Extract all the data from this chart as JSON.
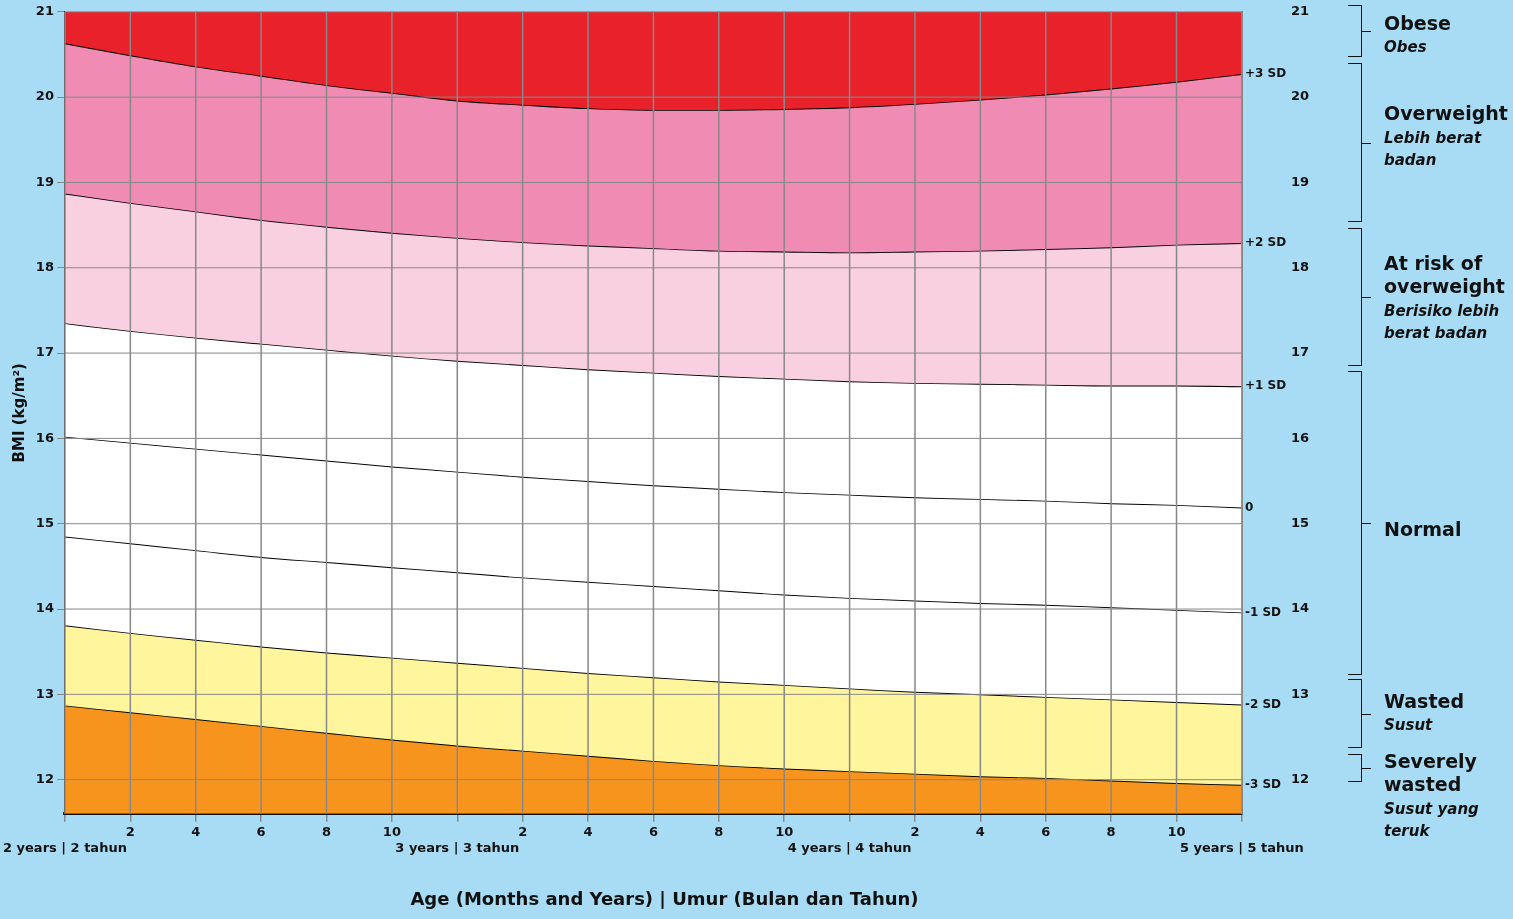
{
  "chart_data": {
    "type": "area",
    "xlabel": "Age (Months and Years) | Umur (Bulan dan Tahun)",
    "ylabel": "BMI (kg/m²)",
    "categories": [
      "2 years | 2 tahun",
      "2",
      "4",
      "6",
      "8",
      "10",
      "3 years | 3 tahun",
      "2",
      "4",
      "6",
      "8",
      "10",
      "4 years | 4 tahun",
      "2",
      "4",
      "6",
      "8",
      "10",
      "5 years | 5 tahun"
    ],
    "ylim": [
      11.6,
      21
    ],
    "yticks": [
      12,
      13,
      14,
      15,
      16,
      17,
      18,
      19,
      20,
      21
    ],
    "y2lim": [
      11.6,
      21
    ],
    "y2ticks": [
      12,
      13,
      14,
      15,
      16,
      17,
      18,
      19,
      20,
      21
    ],
    "grid": true,
    "series": [
      {
        "name": "-3 SD",
        "color": "#f7941d",
        "values": [
          12.87,
          12.79,
          12.71,
          12.63,
          12.55,
          12.47,
          12.4,
          12.34,
          12.28,
          12.22,
          12.17,
          12.13,
          12.1,
          12.07,
          12.04,
          12.02,
          11.99,
          11.96,
          11.94
        ]
      },
      {
        "name": "-2 SD",
        "color": "#fff59d",
        "values": [
          13.81,
          13.72,
          13.64,
          13.56,
          13.49,
          13.43,
          13.37,
          13.31,
          13.25,
          13.2,
          13.15,
          13.11,
          13.07,
          13.03,
          13.0,
          12.97,
          12.94,
          12.91,
          12.88
        ]
      },
      {
        "name": "-1 SD",
        "color": "#ffffff",
        "values": [
          14.85,
          14.77,
          14.69,
          14.61,
          14.55,
          14.49,
          14.43,
          14.37,
          14.32,
          14.27,
          14.22,
          14.17,
          14.13,
          14.1,
          14.07,
          14.05,
          14.02,
          13.99,
          13.96
        ]
      },
      {
        "name": "0",
        "color": "#ffffff",
        "values": [
          16.02,
          15.95,
          15.88,
          15.81,
          15.74,
          15.67,
          15.61,
          15.55,
          15.5,
          15.45,
          15.41,
          15.37,
          15.34,
          15.31,
          15.29,
          15.27,
          15.24,
          15.22,
          15.19
        ]
      },
      {
        "name": "+1 SD",
        "color": "#ffffff",
        "values": [
          17.35,
          17.26,
          17.18,
          17.11,
          17.04,
          16.97,
          16.91,
          16.86,
          16.81,
          16.77,
          16.73,
          16.7,
          16.67,
          16.65,
          16.64,
          16.63,
          16.62,
          16.62,
          16.61
        ]
      },
      {
        "name": "+2 SD",
        "color": "#f9d0e0",
        "values": [
          18.87,
          18.76,
          18.66,
          18.56,
          18.48,
          18.41,
          18.35,
          18.3,
          18.26,
          18.23,
          18.2,
          18.19,
          18.18,
          18.19,
          18.2,
          18.22,
          18.24,
          18.27,
          18.29
        ]
      },
      {
        "name": "+3 SD",
        "color": "#f08cb4",
        "values": [
          20.63,
          20.49,
          20.36,
          20.25,
          20.14,
          20.05,
          19.96,
          19.91,
          19.87,
          19.85,
          19.85,
          19.86,
          19.88,
          19.92,
          19.97,
          20.03,
          20.1,
          20.18,
          20.27
        ]
      },
      {
        "color": "#e8212a",
        "values": [
          21,
          21,
          21,
          21,
          21,
          21,
          21,
          21,
          21,
          21,
          21,
          21,
          21,
          21,
          21,
          21,
          21,
          21,
          21
        ]
      }
    ],
    "annotations": [
      "Obese",
      "Obes",
      "Overweight",
      "Lebih berat badan",
      "At risk of overweight",
      "Berisiko lebih berat badan",
      "Normal",
      "Wasted",
      "Susut",
      "Severely wasted",
      "Susut yang teruk"
    ]
  }
}
